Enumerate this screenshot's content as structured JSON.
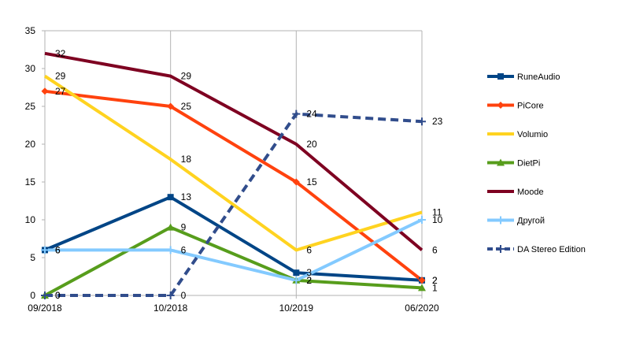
{
  "chart_data": {
    "type": "line",
    "categories": [
      "09/2018",
      "10/2018",
      "10/2019",
      "06/2020"
    ],
    "ylim": [
      0,
      35
    ],
    "yticks": [
      0,
      5,
      10,
      15,
      20,
      25,
      30,
      35
    ],
    "grid": "vertical",
    "legend_position": "right",
    "series": [
      {
        "name": "RuneAudio",
        "values": [
          6,
          13,
          3,
          2
        ],
        "color": "#004586",
        "marker": "square",
        "dashed": false
      },
      {
        "name": "PiCore",
        "values": [
          27,
          25,
          15,
          2
        ],
        "color": "#ff420e",
        "marker": "diamond",
        "dashed": false
      },
      {
        "name": "Volumio",
        "values": [
          29,
          18,
          6,
          11
        ],
        "color": "#ffd320",
        "marker": "none",
        "dashed": false
      },
      {
        "name": "DietPi",
        "values": [
          0,
          9,
          2,
          1
        ],
        "color": "#579d1c",
        "marker": "triangle",
        "dashed": false
      },
      {
        "name": "Moode",
        "values": [
          32,
          29,
          20,
          6
        ],
        "color": "#7e0021",
        "marker": "none",
        "dashed": false
      },
      {
        "name": "Другой",
        "values": [
          6,
          6,
          2,
          10
        ],
        "color": "#83caff",
        "marker": "plus",
        "dashed": false
      },
      {
        "name": "DA Stereo Edition",
        "values": [
          0,
          0,
          24,
          23
        ],
        "color": "#314d8c",
        "marker": "plus",
        "dashed": true
      }
    ]
  }
}
